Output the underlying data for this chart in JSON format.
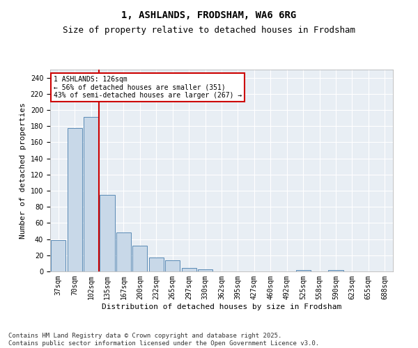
{
  "title_line1": "1, ASHLANDS, FRODSHAM, WA6 6RG",
  "title_line2": "Size of property relative to detached houses in Frodsham",
  "xlabel": "Distribution of detached houses by size in Frodsham",
  "ylabel": "Number of detached properties",
  "categories": [
    "37sqm",
    "70sqm",
    "102sqm",
    "135sqm",
    "167sqm",
    "200sqm",
    "232sqm",
    "265sqm",
    "297sqm",
    "330sqm",
    "362sqm",
    "395sqm",
    "427sqm",
    "460sqm",
    "492sqm",
    "525sqm",
    "558sqm",
    "590sqm",
    "623sqm",
    "655sqm",
    "688sqm"
  ],
  "values": [
    39,
    178,
    191,
    95,
    48,
    32,
    17,
    14,
    4,
    3,
    0,
    0,
    0,
    0,
    0,
    2,
    0,
    2,
    0,
    0,
    0
  ],
  "bar_color": "#c8d8e8",
  "bar_edge_color": "#5a8ab5",
  "background_color": "#e8eef4",
  "vline_x": 2.5,
  "vline_color": "#cc0000",
  "annotation_text": "1 ASHLANDS: 126sqm\n← 56% of detached houses are smaller (351)\n43% of semi-detached houses are larger (267) →",
  "annotation_box_color": "#cc0000",
  "annotation_text_color": "#000000",
  "ylim": [
    0,
    250
  ],
  "yticks": [
    0,
    20,
    40,
    60,
    80,
    100,
    120,
    140,
    160,
    180,
    200,
    220,
    240
  ],
  "footer": "Contains HM Land Registry data © Crown copyright and database right 2025.\nContains public sector information licensed under the Open Government Licence v3.0.",
  "title_fontsize": 10,
  "subtitle_fontsize": 9,
  "axis_fontsize": 8,
  "tick_fontsize": 7,
  "footer_fontsize": 6.5,
  "ann_fontsize": 7
}
